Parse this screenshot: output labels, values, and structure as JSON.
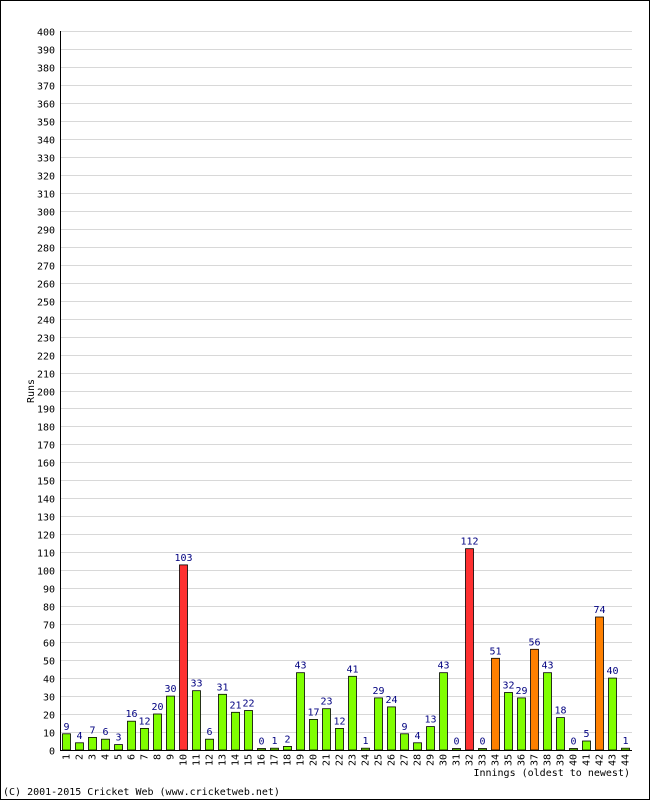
{
  "chart_data": {
    "type": "bar",
    "xlabel": "Innings (oldest to newest)",
    "ylabel": "Runs",
    "ylim": [
      0,
      400
    ],
    "ytick_step": 10,
    "grid": true,
    "categories": [
      "1",
      "2",
      "3",
      "4",
      "5",
      "6",
      "7",
      "8",
      "9",
      "10",
      "11",
      "12",
      "13",
      "14",
      "15",
      "16",
      "17",
      "18",
      "19",
      "20",
      "21",
      "22",
      "23",
      "24",
      "25",
      "26",
      "27",
      "28",
      "29",
      "30",
      "31",
      "32",
      "33",
      "34",
      "35",
      "36",
      "37",
      "38",
      "39",
      "40",
      "41",
      "42",
      "43",
      "44"
    ],
    "values": [
      9,
      4,
      7,
      6,
      3,
      16,
      12,
      20,
      30,
      103,
      33,
      6,
      31,
      21,
      22,
      0,
      1,
      2,
      43,
      17,
      23,
      12,
      41,
      1,
      29,
      24,
      9,
      4,
      13,
      43,
      0,
      112,
      0,
      51,
      32,
      29,
      56,
      43,
      18,
      0,
      5,
      74,
      40,
      1
    ],
    "labels": [
      "9",
      "4",
      "7",
      "6",
      "3",
      "16",
      "12",
      "20",
      "30",
      "103",
      "33",
      "6",
      "31",
      "21",
      "22",
      "0",
      "1",
      "2",
      "43",
      "17",
      "23",
      "12",
      "41",
      "1",
      "29",
      "24",
      "9",
      "4",
      "13",
      "43",
      "0",
      "112",
      "0",
      "51",
      "32",
      "29",
      "56",
      "43",
      "18",
      "0",
      "5",
      "74",
      "40",
      "1"
    ],
    "colors": {
      "default": "#80ff00",
      "fifty": "#ff8000",
      "hundred": "#ff3030",
      "edge": "#000000",
      "grid": "#d8d8d8",
      "value_label": "#000080"
    }
  },
  "footer": {
    "copyright": "(C) 2001-2015 Cricket Web (www.cricketweb.net)"
  }
}
